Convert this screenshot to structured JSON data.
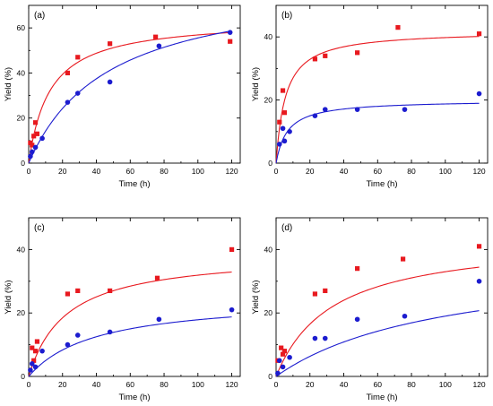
{
  "figure": {
    "background": "#ffffff"
  },
  "colors": {
    "series_red": "#e8191f",
    "series_blue": "#1c1ccf",
    "axis": "#000000"
  },
  "chart_data": [
    {
      "type": "scatter",
      "panel_label": "(a)",
      "xlabel": "Time (h)",
      "ylabel": "Yield (%)",
      "xlim": [
        0,
        125
      ],
      "ylim": [
        0,
        70
      ],
      "xticks": [
        "0",
        "20",
        "40",
        "60",
        "80",
        "100",
        "120"
      ],
      "yticks": [
        "0",
        "20",
        "40",
        "60"
      ],
      "grid": false,
      "series": [
        {
          "marker": "square",
          "color": "#e8191f",
          "x": [
            1,
            2,
            3,
            4,
            5,
            23,
            29,
            48,
            75,
            119
          ],
          "y": [
            9,
            8,
            12,
            18,
            13,
            40,
            47,
            53,
            56,
            54
          ],
          "fit": {
            "ymax": 64,
            "k": 0.08
          }
        },
        {
          "marker": "circle",
          "color": "#1c1ccf",
          "x": [
            1,
            2,
            4,
            8,
            23,
            29,
            48,
            77,
            119
          ],
          "y": [
            3,
            5,
            7,
            11,
            27,
            31,
            36,
            52,
            58
          ],
          "fit": {
            "ymax": 82,
            "k": 0.021
          }
        }
      ]
    },
    {
      "type": "scatter",
      "panel_label": "(b)",
      "xlabel": "Time (h)",
      "ylabel": "Yield (%)",
      "xlim": [
        0,
        125
      ],
      "ylim": [
        0,
        50
      ],
      "xticks": [
        "0",
        "20",
        "40",
        "60",
        "80",
        "100",
        "120"
      ],
      "yticks": [
        "0",
        "20",
        "40"
      ],
      "grid": false,
      "series": [
        {
          "marker": "square",
          "color": "#e8191f",
          "x": [
            2,
            4,
            5,
            23,
            29,
            48,
            72,
            120
          ],
          "y": [
            13,
            23,
            16,
            33,
            34,
            35,
            43,
            41
          ],
          "fit": {
            "ymax": 42,
            "k": 0.18
          }
        },
        {
          "marker": "circle",
          "color": "#1c1ccf",
          "x": [
            2,
            4,
            5,
            8,
            23,
            29,
            48,
            76,
            120
          ],
          "y": [
            6,
            11,
            7,
            10,
            15,
            17,
            17,
            17,
            22
          ],
          "fit": {
            "ymax": 20,
            "k": 0.15
          }
        }
      ]
    },
    {
      "type": "scatter",
      "panel_label": "(c)",
      "xlabel": "Time (h)",
      "ylabel": "Yield (%)",
      "xlim": [
        0,
        125
      ],
      "ylim": [
        0,
        50
      ],
      "xticks": [
        "0",
        "20",
        "40",
        "60",
        "80",
        "100",
        "120"
      ],
      "yticks": [
        "0",
        "20",
        "40"
      ],
      "grid": false,
      "series": [
        {
          "marker": "square",
          "color": "#e8191f",
          "x": [
            2,
            3,
            4,
            5,
            23,
            29,
            48,
            76,
            120
          ],
          "y": [
            9,
            5,
            8,
            11,
            26,
            27,
            27,
            31,
            40
          ],
          "fit": {
            "ymax": 39,
            "k": 0.045
          }
        },
        {
          "marker": "circle",
          "color": "#1c1ccf",
          "x": [
            1,
            2,
            4,
            8,
            23,
            29,
            48,
            77,
            120
          ],
          "y": [
            2,
            4,
            3,
            8,
            10,
            13,
            14,
            18,
            21
          ],
          "fit": {
            "ymax": 25,
            "k": 0.025
          }
        }
      ]
    },
    {
      "type": "scatter",
      "panel_label": "(d)",
      "xlabel": "Time (h)",
      "ylabel": "Yield (%)",
      "xlim": [
        0,
        125
      ],
      "ylim": [
        0,
        50
      ],
      "xticks": [
        "0",
        "20",
        "40",
        "60",
        "80",
        "100",
        "120"
      ],
      "yticks": [
        "0",
        "20",
        "40"
      ],
      "grid": false,
      "series": [
        {
          "marker": "square",
          "color": "#e8191f",
          "x": [
            1,
            3,
            4,
            5,
            23,
            29,
            48,
            75,
            120
          ],
          "y": [
            5,
            9,
            7,
            8,
            26,
            27,
            34,
            37,
            41
          ],
          "fit": {
            "ymax": 44,
            "k": 0.03
          }
        },
        {
          "marker": "circle",
          "color": "#1c1ccf",
          "x": [
            1,
            2,
            4,
            8,
            23,
            29,
            48,
            76,
            120
          ],
          "y": [
            1,
            5,
            3,
            6,
            12,
            12,
            18,
            19,
            30
          ],
          "fit": {
            "ymax": 38,
            "k": 0.01
          }
        }
      ]
    }
  ]
}
